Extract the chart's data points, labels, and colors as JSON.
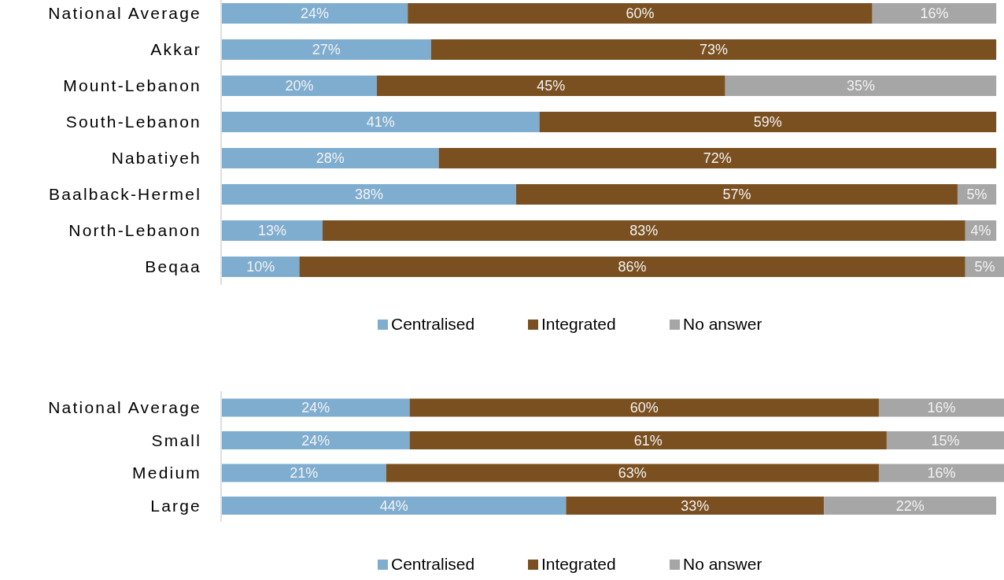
{
  "chart_data": [
    {
      "type": "bar",
      "orientation": "horizontal",
      "stacked": true,
      "legend": "bottom",
      "categories": [
        "National Average",
        "Akkar",
        "Mount-Lebanon",
        "South-Lebanon",
        "Nabatiyeh",
        "Baalback-Hermel",
        "North-Lebanon",
        "Beqaa"
      ],
      "series": [
        {
          "name": "Centralised",
          "color": "#7fadd0",
          "values": [
            24,
            27,
            20,
            41,
            28,
            38,
            13,
            10
          ],
          "value_labels": [
            "24%",
            "27%",
            "20%",
            "41%",
            "28%",
            "38%",
            "13%",
            "10%"
          ]
        },
        {
          "name": "Integrated",
          "color": "#7a5020",
          "values": [
            60,
            73,
            45,
            59,
            72,
            57,
            83,
            86
          ],
          "value_labels": [
            "60%",
            "73%",
            "45%",
            "59%",
            "72%",
            "57%",
            "83%",
            "86%"
          ]
        },
        {
          "name": "No answer",
          "color": "#a6a6a6",
          "values": [
            16,
            null,
            35,
            null,
            null,
            5,
            4,
            5
          ],
          "value_labels": [
            "16%",
            null,
            "35%",
            null,
            null,
            "5%",
            "4%",
            "5%"
          ]
        }
      ]
    },
    {
      "type": "bar",
      "orientation": "horizontal",
      "stacked": true,
      "legend": "bottom",
      "categories": [
        "National Average",
        "Small",
        "Medium",
        "Large"
      ],
      "series": [
        {
          "name": "Centralised",
          "color": "#7fadd0",
          "values": [
            24,
            24,
            21,
            44
          ],
          "value_labels": [
            "24%",
            "24%",
            "21%",
            "44%"
          ]
        },
        {
          "name": "Integrated",
          "color": "#7a5020",
          "values": [
            60,
            61,
            63,
            33
          ],
          "value_labels": [
            "60%",
            "61%",
            "63%",
            "33%"
          ]
        },
        {
          "name": "No answer",
          "color": "#a6a6a6",
          "values": [
            16,
            15,
            16,
            22
          ],
          "value_labels": [
            "16%",
            "15%",
            "16%",
            "22%"
          ]
        }
      ]
    }
  ]
}
